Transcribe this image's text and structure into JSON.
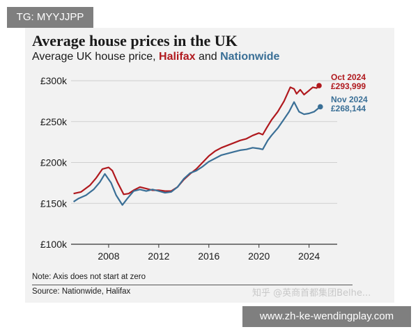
{
  "overlay": {
    "top_label": "TG: MYYJJPP",
    "bottom_label": "www.zh-ke-wendingplay.com",
    "watermark": "知乎 @英商首都集团Belhe..."
  },
  "chart_data": {
    "type": "line",
    "title": "Average house prices in the UK",
    "subtitle_prefix": "Average UK house price, ",
    "subtitle_series_a": "Halifax",
    "subtitle_joiner": " and ",
    "subtitle_series_b": "Nationwide",
    "xlim": [
      2005.0,
      2025.8
    ],
    "ylim": [
      100000,
      300000
    ],
    "y_ticks": [
      100000,
      150000,
      200000,
      250000,
      300000
    ],
    "y_tick_labels": [
      "£100k",
      "£150k",
      "£200k",
      "£250k",
      "£300k"
    ],
    "x_ticks": [
      2008,
      2012,
      2016,
      2020,
      2024
    ],
    "x_tick_labels": [
      "2008",
      "2012",
      "2016",
      "2020",
      "2024"
    ],
    "grid": true,
    "colors": {
      "halifax": "#b0191e",
      "nationwide": "#3a6f96"
    },
    "series": [
      {
        "name": "Halifax",
        "color": "#b0191e",
        "x": [
          2005.2,
          2005.8,
          2006.5,
          2007.0,
          2007.5,
          2008.0,
          2008.3,
          2008.7,
          2009.2,
          2009.6,
          2010.0,
          2010.5,
          2011.0,
          2011.5,
          2012.0,
          2012.5,
          2013.0,
          2013.5,
          2014.0,
          2014.5,
          2015.0,
          2015.5,
          2016.0,
          2016.5,
          2017.0,
          2017.5,
          2018.0,
          2018.5,
          2019.0,
          2019.5,
          2020.0,
          2020.3,
          2020.6,
          2021.0,
          2021.5,
          2022.0,
          2022.5,
          2022.8,
          2023.0,
          2023.3,
          2023.6,
          2024.0,
          2024.3,
          2024.6,
          2024.8
        ],
        "values": [
          162000,
          164000,
          172000,
          181000,
          192000,
          194000,
          190000,
          176000,
          161000,
          162000,
          166000,
          170000,
          168000,
          166000,
          166000,
          165000,
          165000,
          170000,
          179000,
          186000,
          192000,
          200000,
          208000,
          214000,
          218000,
          221000,
          224000,
          227000,
          229000,
          233000,
          236000,
          234000,
          242000,
          252000,
          262000,
          275000,
          292000,
          290000,
          284000,
          289000,
          283000,
          288000,
          292000,
          291000,
          293999
        ],
        "end_label_date": "Oct 2024",
        "end_label_value": "£293,999"
      },
      {
        "name": "Nationwide",
        "color": "#3a6f96",
        "x": [
          2005.2,
          2005.6,
          2006.2,
          2006.8,
          2007.3,
          2007.7,
          2008.2,
          2008.6,
          2009.1,
          2009.5,
          2010.0,
          2010.5,
          2011.0,
          2011.5,
          2012.0,
          2012.5,
          2013.0,
          2013.5,
          2014.0,
          2014.5,
          2015.0,
          2015.5,
          2016.0,
          2016.5,
          2017.0,
          2017.5,
          2018.0,
          2018.5,
          2019.0,
          2019.5,
          2020.0,
          2020.3,
          2020.7,
          2021.0,
          2021.5,
          2022.0,
          2022.4,
          2022.8,
          2023.2,
          2023.6,
          2024.0,
          2024.4,
          2024.9
        ],
        "values": [
          152000,
          156000,
          160000,
          167000,
          176000,
          186000,
          175000,
          160000,
          148000,
          156000,
          165000,
          167000,
          165000,
          167000,
          165000,
          163000,
          164000,
          170000,
          180000,
          187000,
          190000,
          195000,
          201000,
          205000,
          209000,
          211000,
          213000,
          215000,
          216000,
          218000,
          217000,
          216000,
          227000,
          233000,
          242000,
          253000,
          262000,
          274000,
          262000,
          259000,
          260000,
          262000,
          268144
        ],
        "end_label_date": "Nov 2024",
        "end_label_value": "£268,144"
      }
    ],
    "note": "Note: Axis does not start at zero",
    "source": "Source: Nationwide, Halifax"
  }
}
